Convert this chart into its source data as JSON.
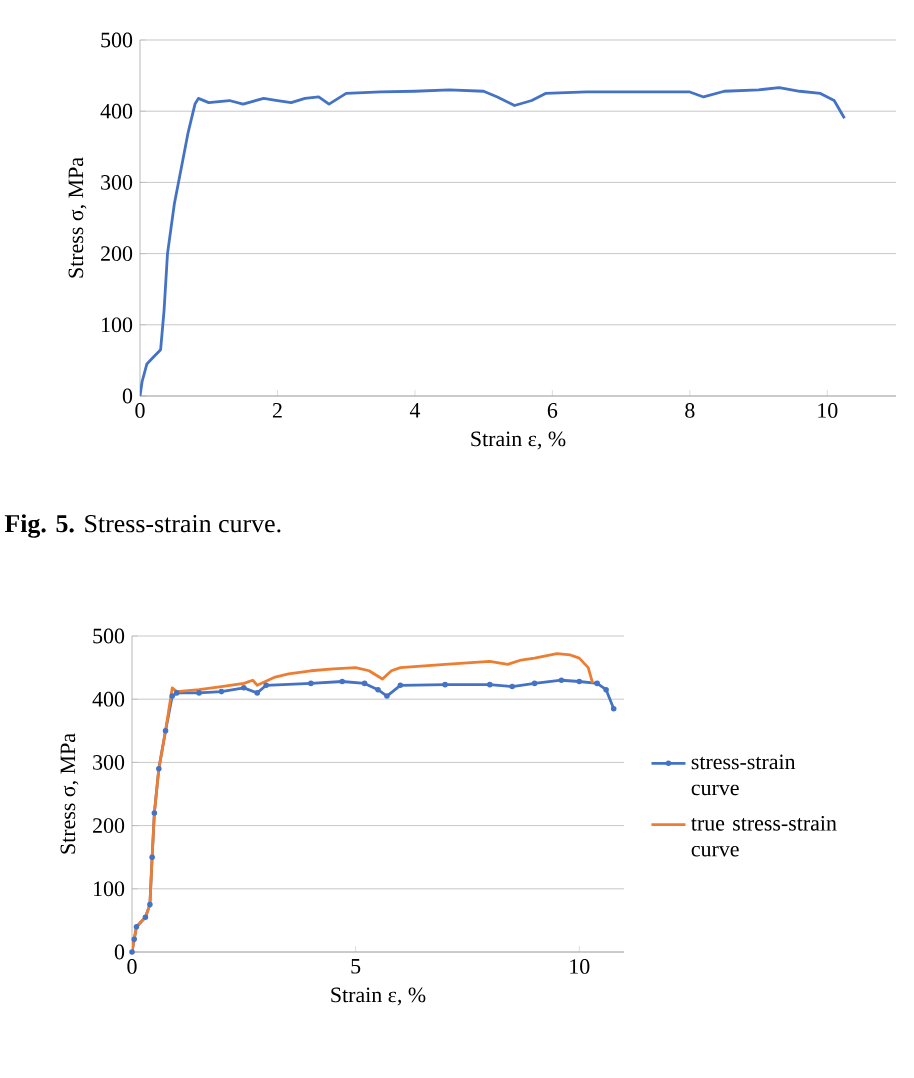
{
  "chart_data": [
    {
      "type": "line",
      "xlabel": "Strain ε, %",
      "ylabel": "Stress σ, MPa",
      "annotations": [
        "**Fig. 5.** Stress-strain curve."
      ],
      "xlim": [
        0,
        11
      ],
      "ylim": [
        0,
        500
      ],
      "xticks": [
        0,
        2,
        4,
        6,
        8,
        10
      ],
      "yticks": [
        0,
        100,
        200,
        300,
        400,
        500
      ],
      "grid": "y",
      "line_style": "solid",
      "series": [
        {
          "color": "#4472c4",
          "x": [
            0,
            0.03,
            0.1,
            0.2,
            0.3,
            0.35,
            0.4,
            0.5,
            0.6,
            0.7,
            0.8,
            0.85,
            1.0,
            1.3,
            1.5,
            1.8,
            2.0,
            2.2,
            2.4,
            2.6,
            2.75,
            3.0,
            3.5,
            4.0,
            4.5,
            5.0,
            5.2,
            5.45,
            5.7,
            5.9,
            6.5,
            7.0,
            7.5,
            8.0,
            8.2,
            8.5,
            9.0,
            9.3,
            9.6,
            9.9,
            10.1,
            10.25
          ],
          "values": [
            0,
            20,
            45,
            55,
            65,
            120,
            200,
            270,
            320,
            370,
            410,
            418,
            412,
            415,
            410,
            418,
            415,
            412,
            418,
            420,
            410,
            425,
            427,
            428,
            430,
            428,
            420,
            408,
            415,
            425,
            427,
            427,
            427,
            427,
            420,
            428,
            430,
            433,
            428,
            425,
            415,
            390
          ]
        }
      ]
    },
    {
      "type": "line",
      "xlabel": "Strain ε, %",
      "ylabel": "Stress σ, MPa",
      "xlim": [
        0,
        11
      ],
      "ylim": [
        0,
        500
      ],
      "xticks": [
        0,
        5,
        10
      ],
      "yticks": [
        0,
        100,
        200,
        300,
        400,
        500
      ],
      "grid": "y",
      "legend": "right",
      "line_style": "solid",
      "series": [
        {
          "name": "stress-strain curve",
          "color": "#4472c4",
          "marker": "circle",
          "x": [
            0,
            0.05,
            0.1,
            0.3,
            0.4,
            0.45,
            0.5,
            0.6,
            0.75,
            0.9,
            1.0,
            1.5,
            2.0,
            2.5,
            2.8,
            3.0,
            4.0,
            4.7,
            5.2,
            5.5,
            5.7,
            6.0,
            7.0,
            8.0,
            8.5,
            9.0,
            9.6,
            10.0,
            10.4,
            10.6,
            10.77
          ],
          "values": [
            0,
            20,
            40,
            55,
            75,
            150,
            220,
            290,
            350,
            405,
            410,
            410,
            412,
            418,
            410,
            422,
            425,
            428,
            425,
            415,
            405,
            422,
            423,
            423,
            420,
            425,
            430,
            428,
            425,
            415,
            385
          ]
        },
        {
          "name": "true stress-strain curve",
          "color": "#ed7d31",
          "x": [
            0,
            0.05,
            0.1,
            0.3,
            0.4,
            0.45,
            0.5,
            0.6,
            0.75,
            0.9,
            1.0,
            1.5,
            2.0,
            2.5,
            2.7,
            2.8,
            3.2,
            3.5,
            4.0,
            4.5,
            5.0,
            5.3,
            5.6,
            5.8,
            6.0,
            7.0,
            8.0,
            8.4,
            8.7,
            9.0,
            9.5,
            9.8,
            10.0,
            10.2,
            10.3
          ],
          "values": [
            0,
            20,
            40,
            55,
            75,
            150,
            220,
            290,
            350,
            418,
            412,
            415,
            420,
            425,
            430,
            422,
            435,
            440,
            445,
            448,
            450,
            445,
            432,
            445,
            450,
            455,
            460,
            455,
            462,
            465,
            472,
            470,
            465,
            450,
            425
          ]
        }
      ]
    }
  ]
}
